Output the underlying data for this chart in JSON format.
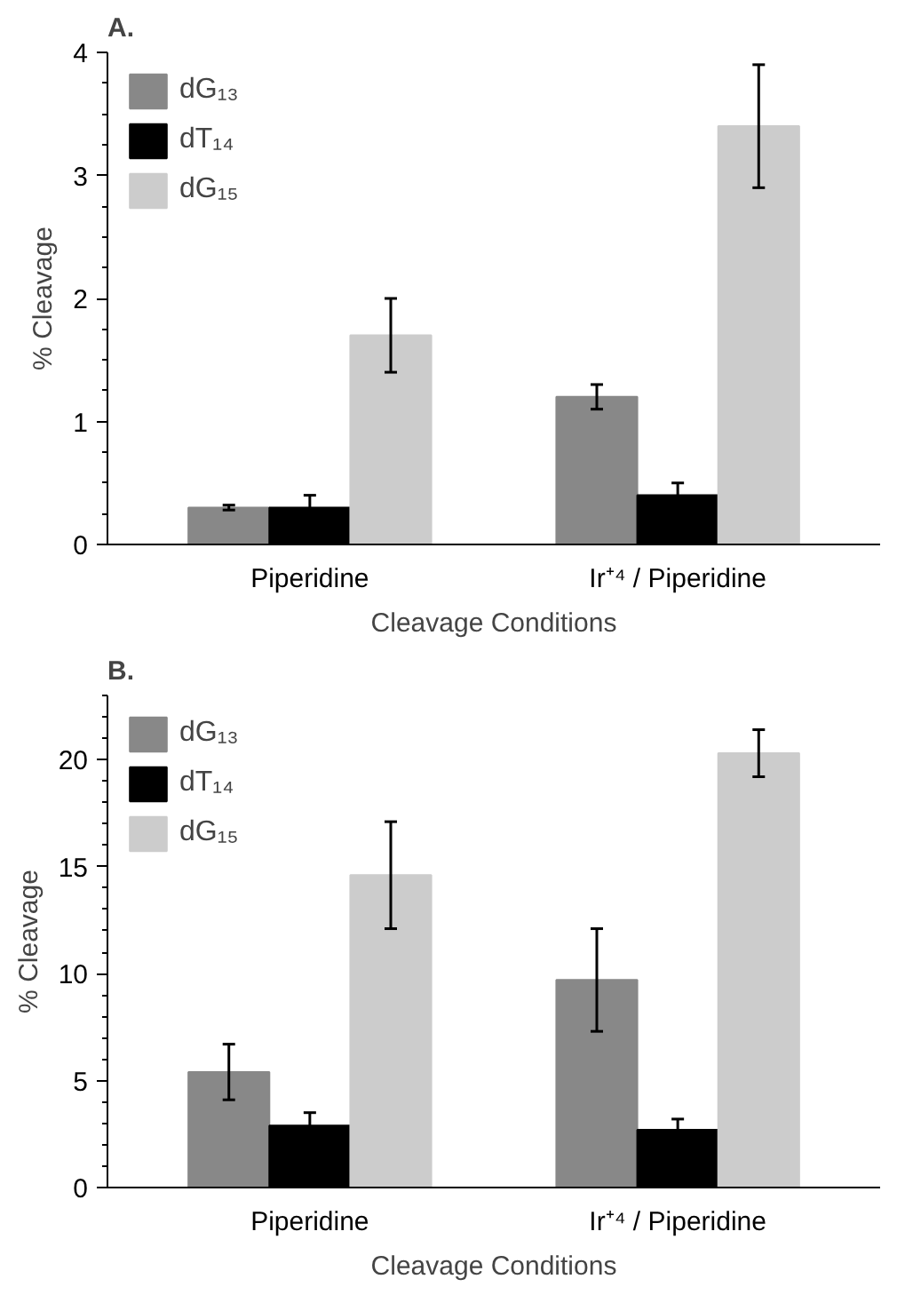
{
  "chart_data": [
    {
      "type": "bar",
      "title": "A.",
      "xlabel": "Cleavage Conditions",
      "ylabel": "% Cleavage",
      "categories": [
        "Piperidine",
        "Ir⁺⁴ / Piperidine"
      ],
      "series": [
        {
          "name": "dG₁₃",
          "color": "#888888",
          "values": [
            0.3,
            1.2
          ],
          "errors": [
            0.02,
            0.1
          ]
        },
        {
          "name": "dT₁₄",
          "color": "#000000",
          "values": [
            0.3,
            0.4
          ],
          "errors": [
            0.1,
            0.1
          ]
        },
        {
          "name": "dG₁₅",
          "color": "#cccccc",
          "values": [
            1.7,
            3.4
          ],
          "errors": [
            0.3,
            0.5
          ]
        }
      ],
      "ylim": [
        0,
        4
      ],
      "yticks": [
        0,
        {
          "value": 0.25,
          "label": null
        },
        {
          "value": 0.5,
          "label": null
        },
        {
          "value": 0.75,
          "label": null
        },
        1,
        {
          "value": 1.25,
          "label": null
        },
        {
          "value": 1.5,
          "label": null
        },
        {
          "value": 1.75,
          "label": null
        },
        2,
        {
          "value": 2.25,
          "label": null
        },
        {
          "value": 2.5,
          "label": null
        },
        {
          "value": 2.75,
          "label": null
        },
        3,
        {
          "value": 3.25,
          "label": null
        },
        {
          "value": 3.5,
          "label": null
        },
        {
          "value": 3.75,
          "label": null
        },
        4
      ],
      "legend": "top left",
      "grid": false
    },
    {
      "type": "bar",
      "title": "B.",
      "xlabel": "Cleavage Conditions",
      "ylabel": "% Cleavage",
      "categories": [
        "Piperidine",
        "Ir⁺⁴ / Piperidine"
      ],
      "series": [
        {
          "name": "dG₁₃",
          "color": "#888888",
          "values": [
            5.4,
            9.7
          ],
          "errors": [
            1.3,
            2.4
          ]
        },
        {
          "name": "dT₁₄",
          "color": "#000000",
          "values": [
            2.9,
            2.7
          ],
          "errors": [
            0.6,
            0.5
          ]
        },
        {
          "name": "dG₁₅",
          "color": "#cccccc",
          "values": [
            14.6,
            20.3
          ],
          "errors": [
            2.5,
            1.1
          ]
        }
      ],
      "ylim": [
        0,
        23
      ],
      "yticks": [
        0,
        {
          "value": 1,
          "label": null
        },
        {
          "value": 2,
          "label": null
        },
        {
          "value": 3,
          "label": null
        },
        {
          "value": 4,
          "label": null
        },
        5,
        {
          "value": 6,
          "label": null
        },
        {
          "value": 7,
          "label": null
        },
        {
          "value": 8,
          "label": null
        },
        {
          "value": 9,
          "label": null
        },
        10,
        {
          "value": 11,
          "label": null
        },
        {
          "value": 12,
          "label": null
        },
        {
          "value": 13,
          "label": null
        },
        {
          "value": 14,
          "label": null
        },
        15,
        {
          "value": 16,
          "label": null
        },
        {
          "value": 17,
          "label": null
        },
        {
          "value": 18,
          "label": null
        },
        {
          "value": 19,
          "label": null
        },
        20,
        {
          "value": 21,
          "label": null
        },
        {
          "value": 22,
          "label": null
        },
        {
          "value": 23,
          "label": null
        }
      ],
      "legend": "top left",
      "grid": false
    }
  ]
}
